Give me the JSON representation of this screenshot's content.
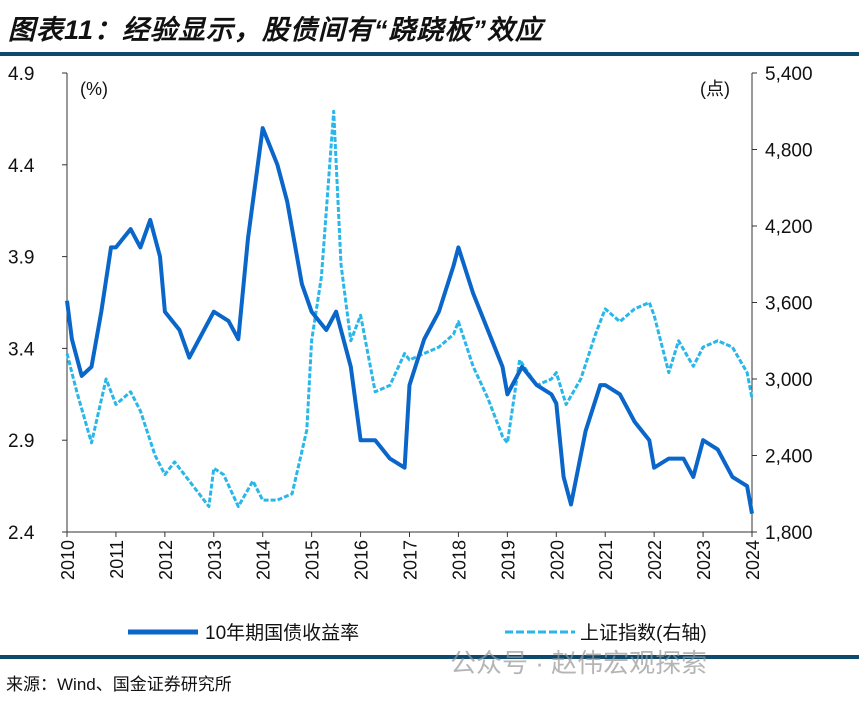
{
  "title": "图表11：经验显示，股债间有“跷跷板”效应",
  "source": "来源：Wind、国金证券研究所",
  "watermark": "公众号 · 赵伟宏观探索",
  "chart_data": {
    "type": "line",
    "left_axis": {
      "label": "(%)",
      "ticks": [
        "2.4",
        "2.9",
        "3.4",
        "3.9",
        "4.4",
        "4.9"
      ],
      "range": [
        2.4,
        4.9
      ]
    },
    "right_axis": {
      "label": "(点)",
      "ticks": [
        "1,800",
        "2,400",
        "3,000",
        "3,600",
        "4,200",
        "4,800",
        "5,400"
      ],
      "range": [
        1800,
        5400
      ]
    },
    "x_ticks": [
      "2010",
      "2011",
      "2012",
      "2013",
      "2014",
      "2015",
      "2016",
      "2017",
      "2018",
      "2019",
      "2020",
      "2021",
      "2022",
      "2023",
      "2024"
    ],
    "x_range": [
      2010,
      2024
    ],
    "grid": false,
    "legend_position": "bottom",
    "series": [
      {
        "name": "10年期国债收益率",
        "axis": "left",
        "color": "#0a66c8",
        "style": "solid",
        "x": [
          2010,
          2010.1,
          2010.3,
          2010.5,
          2010.7,
          2010.9,
          2011,
          2011.3,
          2011.5,
          2011.7,
          2011.9,
          2012,
          2012.3,
          2012.5,
          2012.8,
          2013,
          2013.3,
          2013.5,
          2013.7,
          2013.9,
          2014,
          2014.3,
          2014.5,
          2014.8,
          2015,
          2015.3,
          2015.5,
          2015.8,
          2016,
          2016.3,
          2016.6,
          2016.9,
          2017,
          2017.3,
          2017.6,
          2017.9,
          2018,
          2018.3,
          2018.6,
          2018.9,
          2019,
          2019.3,
          2019.6,
          2019.9,
          2020,
          2020.15,
          2020.3,
          2020.6,
          2020.9,
          2021,
          2021.3,
          2021.6,
          2021.9,
          2022,
          2022.3,
          2022.6,
          2022.8,
          2023,
          2023.3,
          2023.6,
          2023.9,
          2024
        ],
        "y": [
          3.66,
          3.45,
          3.25,
          3.3,
          3.6,
          3.95,
          3.95,
          4.05,
          3.95,
          4.1,
          3.9,
          3.6,
          3.5,
          3.35,
          3.5,
          3.6,
          3.55,
          3.45,
          4.0,
          4.4,
          4.6,
          4.4,
          4.2,
          3.75,
          3.6,
          3.5,
          3.6,
          3.3,
          2.9,
          2.9,
          2.8,
          2.75,
          3.2,
          3.45,
          3.6,
          3.85,
          3.95,
          3.7,
          3.5,
          3.3,
          3.15,
          3.3,
          3.2,
          3.15,
          3.1,
          2.7,
          2.55,
          2.95,
          3.2,
          3.2,
          3.15,
          3.0,
          2.9,
          2.75,
          2.8,
          2.8,
          2.7,
          2.9,
          2.85,
          2.7,
          2.65,
          2.5
        ]
      },
      {
        "name": "上证指数(右轴)",
        "axis": "right",
        "color": "#29b6e8",
        "style": "dashed",
        "x": [
          2010,
          2010.2,
          2010.5,
          2010.8,
          2011,
          2011.3,
          2011.5,
          2011.8,
          2012,
          2012.2,
          2012.5,
          2012.9,
          2013,
          2013.2,
          2013.5,
          2013.8,
          2014,
          2014.3,
          2014.6,
          2014.9,
          2015,
          2015.2,
          2015.45,
          2015.6,
          2015.8,
          2016,
          2016.3,
          2016.6,
          2016.9,
          2017,
          2017.3,
          2017.6,
          2017.9,
          2018,
          2018.3,
          2018.6,
          2018.9,
          2019,
          2019.25,
          2019.6,
          2019.9,
          2020,
          2020.2,
          2020.5,
          2020.8,
          2021,
          2021.3,
          2021.6,
          2021.9,
          2022,
          2022.3,
          2022.5,
          2022.8,
          2023,
          2023.3,
          2023.6,
          2023.9,
          2024
        ],
        "y": [
          3200,
          2900,
          2500,
          3000,
          2800,
          2900,
          2750,
          2400,
          2250,
          2350,
          2200,
          2000,
          2300,
          2250,
          2000,
          2200,
          2050,
          2050,
          2100,
          2600,
          3300,
          3800,
          5100,
          3900,
          3300,
          3500,
          2900,
          2950,
          3200,
          3150,
          3200,
          3250,
          3350,
          3450,
          3100,
          2850,
          2550,
          2500,
          3150,
          2950,
          3000,
          3050,
          2800,
          3000,
          3350,
          3550,
          3450,
          3550,
          3600,
          3500,
          3050,
          3300,
          3100,
          3250,
          3300,
          3250,
          3050,
          2850
        ]
      }
    ]
  }
}
